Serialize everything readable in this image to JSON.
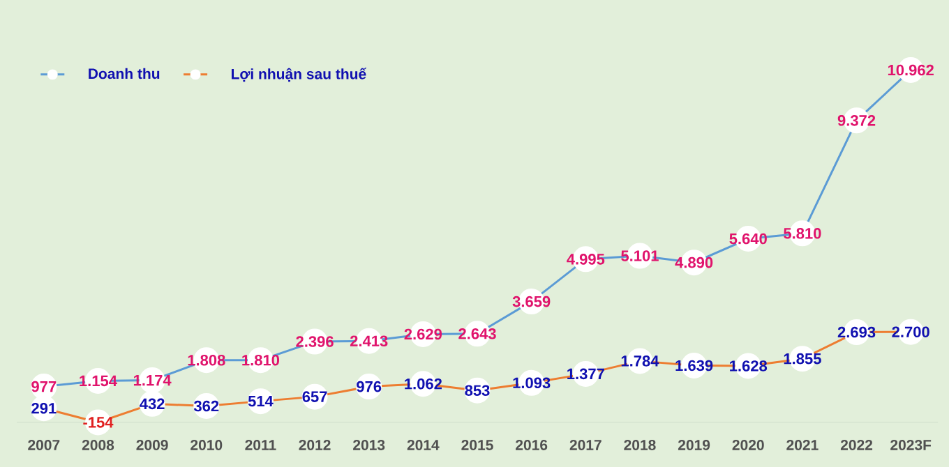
{
  "chart_data": {
    "type": "line",
    "categories": [
      "2007",
      "2008",
      "2009",
      "2010",
      "2011",
      "2012",
      "2013",
      "2014",
      "2015",
      "2016",
      "2017",
      "2018",
      "2019",
      "2020",
      "2021",
      "2022",
      "2023F"
    ],
    "series": [
      {
        "name": "Doanh thu",
        "color": "#5b9bd5",
        "values": [
          977,
          1154,
          1174,
          1808,
          1810,
          2396,
          2413,
          2629,
          2643,
          3659,
          4995,
          5101,
          4890,
          5640,
          5810,
          9372,
          10962
        ],
        "value_labels": [
          "977",
          "1.154",
          "1.174",
          "1.808",
          "1.810",
          "2.396",
          "2.413",
          "2.629",
          "2.643",
          "3.659",
          "4.995",
          "5.101",
          "4.890",
          "5.640",
          "5.810",
          "9.372",
          "10.962"
        ]
      },
      {
        "name": "Lợi nhuận sau thuế",
        "color": "#ed7d31",
        "values": [
          291,
          -154,
          432,
          362,
          514,
          657,
          976,
          1062,
          853,
          1093,
          1377,
          1784,
          1639,
          1628,
          1855,
          2693,
          2700
        ],
        "value_labels": [
          "291",
          "-154",
          "432",
          "362",
          "514",
          "657",
          "976",
          "1.062",
          "853",
          "1.093",
          "1.377",
          "1.784",
          "1.639",
          "1.628",
          "1.855",
          "2.693",
          "2.700"
        ]
      }
    ],
    "legend": "top left",
    "marker": "circle",
    "line_style": "solid",
    "grid": false
  }
}
